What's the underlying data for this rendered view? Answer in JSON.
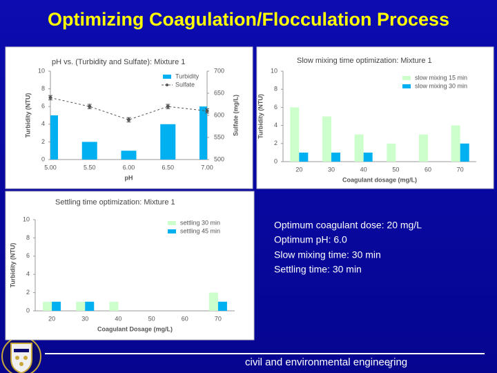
{
  "title": "Optimizing Coagulation/Flocculation Process",
  "chart_data": [
    {
      "type": "bar",
      "title": "pH vs. (Turbidity and Sulfate): Mixture 1",
      "x_label": "pH",
      "y_label": "Turbidity (NTU)",
      "y2_label": "Sulfate (mg/L)",
      "categories": [
        "5.00",
        "5.50",
        "6.00",
        "6.50",
        "7.00"
      ],
      "series": [
        {
          "name": "Turbidity",
          "color": "#00b0f0",
          "values": [
            5,
            2,
            1,
            4,
            6
          ]
        },
        {
          "name": "Sulfate",
          "type": "line",
          "axis": "y2",
          "color": "#555555",
          "values": [
            640,
            620,
            590,
            620,
            610
          ],
          "errors": [
            5,
            5,
            5,
            5,
            5
          ]
        }
      ],
      "ylim": [
        0,
        10
      ],
      "yticks": [
        0,
        2,
        4,
        6,
        8,
        10
      ],
      "y2lim": [
        500,
        700
      ],
      "y2ticks": [
        500,
        550,
        600,
        650,
        700
      ],
      "legend": "upper right"
    },
    {
      "type": "bar",
      "title": "Slow mixing time optimization: Mixture 1",
      "x_label": "Coagulant dosage (mg/L)",
      "y_label": "Turbidity (NTU)",
      "categories": [
        "20",
        "30",
        "40",
        "50",
        "60",
        "70"
      ],
      "series": [
        {
          "name": "slow mixing 15 min",
          "color": "#ccffcc",
          "values": [
            6,
            5,
            3,
            2,
            3,
            4
          ]
        },
        {
          "name": "slow mixing 30 min",
          "color": "#00b0f0",
          "values": [
            1,
            1,
            1,
            null,
            null,
            2
          ]
        }
      ],
      "ylim": [
        0,
        10
      ],
      "yticks": [
        0,
        2,
        4,
        6,
        8,
        10
      ],
      "legend": "upper right"
    },
    {
      "type": "bar",
      "title": "Settling time optimization: Mixture 1",
      "x_label": "Coagulant Dosage (mg/L)",
      "y_label": "Turbidity (NTU)",
      "categories": [
        "20",
        "30",
        "40",
        "50",
        "60",
        "70"
      ],
      "series": [
        {
          "name": "settling 30 min",
          "color": "#ccffcc",
          "values": [
            1,
            1,
            1,
            null,
            null,
            2
          ]
        },
        {
          "name": "settling 45 min",
          "color": "#00b0f0",
          "values": [
            1,
            1,
            null,
            null,
            null,
            1
          ]
        }
      ],
      "ylim": [
        0,
        10
      ],
      "yticks": [
        0,
        2,
        4,
        6,
        8,
        10
      ],
      "legend": "upper right"
    }
  ],
  "summary": [
    "Optimum coagulant dose: 20 mg/L",
    "Optimum pH: 6.0",
    "Slow mixing time: 30 min",
    "Settling time: 30 min"
  ],
  "footer": "civil and environmental engineering",
  "page_number": "9"
}
